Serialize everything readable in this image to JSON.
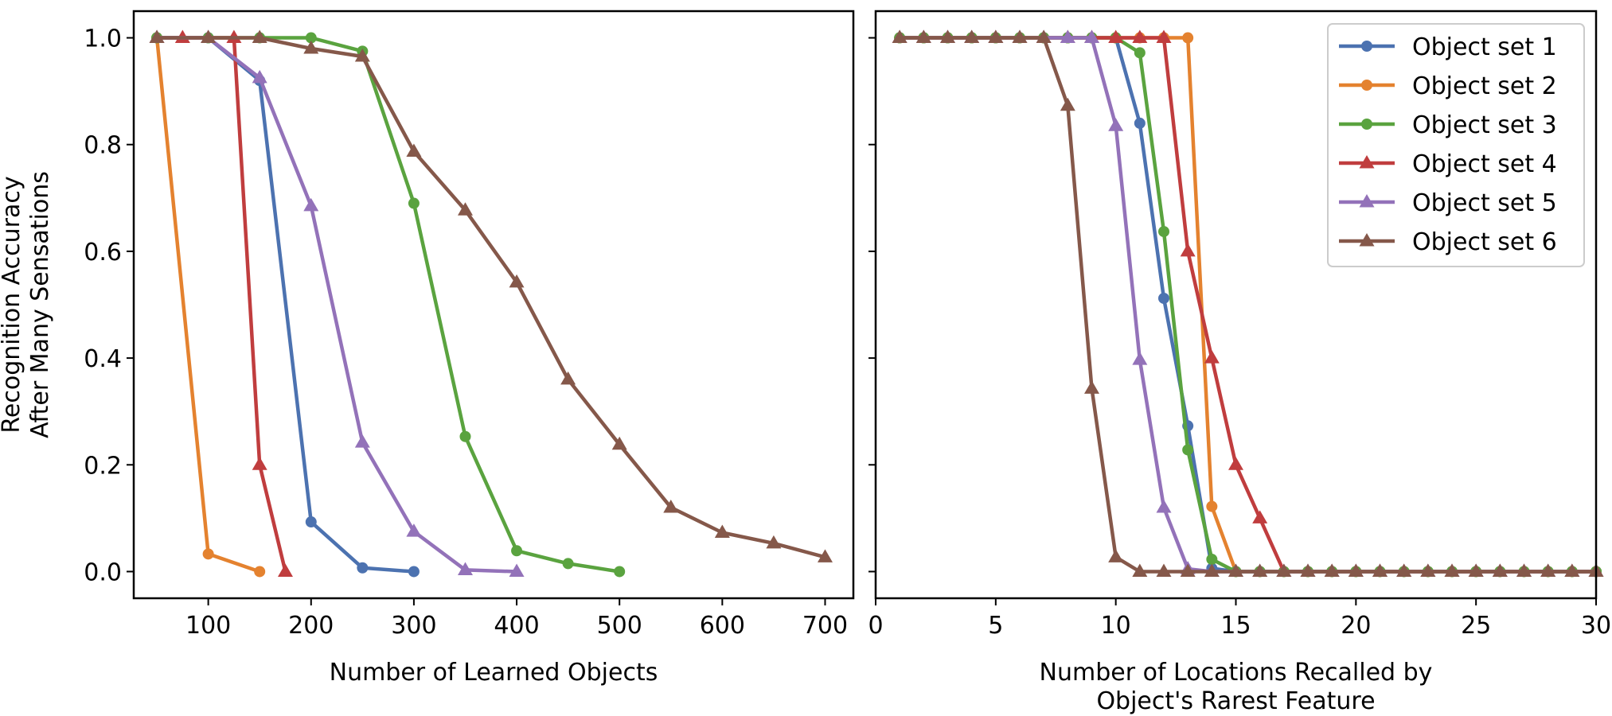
{
  "chart_data": [
    {
      "type": "line",
      "title": "",
      "xlabel": "Number of Learned Objects",
      "ylabel": [
        "Recognition Accuracy",
        "After Many Sensations"
      ],
      "xlim": [
        27.5,
        727.5
      ],
      "ylim": [
        -0.05,
        1.05
      ],
      "xticks": [
        100,
        200,
        300,
        400,
        500,
        600,
        700
      ],
      "yticks": [
        0.0,
        0.2,
        0.4,
        0.6,
        0.8,
        1.0
      ],
      "grid": false,
      "series": [
        {
          "name": "Object set 1",
          "color": "#4c72b0",
          "marker": "circle",
          "x": [
            50,
            100,
            150,
            200,
            250,
            300
          ],
          "y": [
            1.0,
            1.0,
            0.92,
            0.093,
            0.007,
            0.0
          ]
        },
        {
          "name": "Object set 2",
          "color": "#e4822f",
          "marker": "circle",
          "x": [
            50,
            100,
            150
          ],
          "y": [
            1.0,
            0.033,
            0.0
          ]
        },
        {
          "name": "Object set 3",
          "color": "#5aa33f",
          "marker": "circle",
          "x": [
            50,
            100,
            150,
            200,
            250,
            300,
            350,
            400,
            450,
            500
          ],
          "y": [
            1.0,
            1.0,
            1.0,
            1.0,
            0.975,
            0.69,
            0.253,
            0.039,
            0.015,
            0.0
          ]
        },
        {
          "name": "Object set 4",
          "color": "#c03d3e",
          "marker": "triangle",
          "x": [
            50,
            75,
            100,
            125,
            150,
            175
          ],
          "y": [
            1.0,
            1.0,
            1.0,
            1.0,
            0.2,
            0.0
          ]
        },
        {
          "name": "Object set 5",
          "color": "#9372b9",
          "marker": "triangle",
          "x": [
            50,
            100,
            150,
            200,
            250,
            300,
            350,
            400
          ],
          "y": [
            1.0,
            1.0,
            0.925,
            0.685,
            0.242,
            0.075,
            0.003,
            0.0
          ]
        },
        {
          "name": "Object set 6",
          "color": "#85584a",
          "marker": "triangle",
          "x": [
            50,
            100,
            150,
            200,
            250,
            300,
            350,
            400,
            450,
            500,
            550,
            600,
            650,
            700
          ],
          "y": [
            1.0,
            1.0,
            1.0,
            0.98,
            0.965,
            0.787,
            0.677,
            0.542,
            0.36,
            0.238,
            0.12,
            0.073,
            0.053,
            0.027
          ]
        }
      ]
    },
    {
      "type": "line",
      "title": "",
      "xlabel": [
        "Number of Locations Recalled by",
        "Object's Rarest Feature"
      ],
      "ylabel": "",
      "xlim": [
        0,
        30
      ],
      "ylim": [
        -0.05,
        1.05
      ],
      "xticks": [
        0,
        5,
        10,
        15,
        20,
        25,
        30
      ],
      "yticks": [
        0.0,
        0.2,
        0.4,
        0.6,
        0.8,
        1.0
      ],
      "grid": false,
      "legend": "top-right",
      "series": [
        {
          "name": "Object set 1",
          "color": "#4c72b0",
          "marker": "circle",
          "x": [
            1,
            2,
            3,
            4,
            5,
            6,
            7,
            8,
            9,
            10,
            11,
            12,
            13,
            14,
            15,
            16,
            17,
            18,
            19,
            20,
            21,
            22,
            23,
            24,
            25,
            26,
            27,
            28,
            29,
            30
          ],
          "y": [
            1,
            1,
            1,
            1,
            1,
            1,
            1,
            1,
            1,
            1,
            0.84,
            0.512,
            0.273,
            0.006,
            0,
            0,
            0,
            0,
            0,
            0,
            0,
            0,
            0,
            0,
            0,
            0,
            0,
            0,
            0,
            0
          ]
        },
        {
          "name": "Object set 2",
          "color": "#e4822f",
          "marker": "circle",
          "x": [
            1,
            2,
            3,
            4,
            5,
            6,
            7,
            8,
            9,
            10,
            11,
            12,
            13,
            14,
            15,
            16,
            17,
            18,
            19,
            20,
            21,
            22,
            23,
            24,
            25,
            26,
            27,
            28,
            29,
            30
          ],
          "y": [
            1,
            1,
            1,
            1,
            1,
            1,
            1,
            1,
            1,
            1,
            1,
            1,
            1,
            0.122,
            0,
            0,
            0,
            0,
            0,
            0,
            0,
            0,
            0,
            0,
            0,
            0,
            0,
            0,
            0,
            0
          ]
        },
        {
          "name": "Object set 3",
          "color": "#5aa33f",
          "marker": "circle",
          "x": [
            1,
            2,
            3,
            4,
            5,
            6,
            7,
            8,
            9,
            10,
            11,
            12,
            13,
            14,
            15,
            16,
            17,
            18,
            19,
            20,
            21,
            22,
            23,
            24,
            25,
            26,
            27,
            28,
            29,
            30
          ],
          "y": [
            1,
            1,
            1,
            1,
            1,
            1,
            1,
            1,
            1,
            1,
            0.972,
            0.637,
            0.228,
            0.023,
            0,
            0,
            0,
            0,
            0,
            0,
            0,
            0,
            0,
            0,
            0,
            0,
            0,
            0,
            0,
            0
          ]
        },
        {
          "name": "Object set 4",
          "color": "#c03d3e",
          "marker": "triangle",
          "x": [
            1,
            2,
            3,
            4,
            5,
            6,
            7,
            8,
            9,
            10,
            11,
            12,
            13,
            14,
            15,
            16,
            17,
            18,
            19,
            20,
            21,
            22,
            23,
            24,
            25,
            26,
            27,
            28,
            29,
            30
          ],
          "y": [
            1,
            1,
            1,
            1,
            1,
            1,
            1,
            1,
            1,
            1,
            1,
            1,
            0.6,
            0.4,
            0.2,
            0.1,
            0,
            0,
            0,
            0,
            0,
            0,
            0,
            0,
            0,
            0,
            0,
            0,
            0,
            0
          ]
        },
        {
          "name": "Object set 5",
          "color": "#9372b9",
          "marker": "triangle",
          "x": [
            1,
            2,
            3,
            4,
            5,
            6,
            7,
            8,
            9,
            10,
            11,
            12,
            13,
            14,
            15,
            16,
            17,
            18,
            19,
            20,
            21,
            22,
            23,
            24,
            25,
            26,
            27,
            28,
            29,
            30
          ],
          "y": [
            1,
            1,
            1,
            1,
            1,
            1,
            1,
            1,
            1,
            0.835,
            0.397,
            0.12,
            0.005,
            0,
            0,
            0,
            0,
            0,
            0,
            0,
            0,
            0,
            0,
            0,
            0,
            0,
            0,
            0,
            0,
            0
          ]
        },
        {
          "name": "Object set 6",
          "color": "#85584a",
          "marker": "triangle",
          "x": [
            1,
            2,
            3,
            4,
            5,
            6,
            7,
            8,
            9,
            10,
            11,
            12,
            13,
            14,
            15,
            16,
            17,
            18,
            19,
            20,
            21,
            22,
            23,
            24,
            25,
            26,
            27,
            28,
            29,
            30
          ],
          "y": [
            1,
            1,
            1,
            1,
            1,
            1,
            1,
            0.873,
            0.343,
            0.027,
            0,
            0,
            0,
            0,
            0,
            0,
            0,
            0,
            0,
            0,
            0,
            0,
            0,
            0,
            0,
            0,
            0,
            0,
            0,
            0
          ]
        }
      ]
    }
  ]
}
